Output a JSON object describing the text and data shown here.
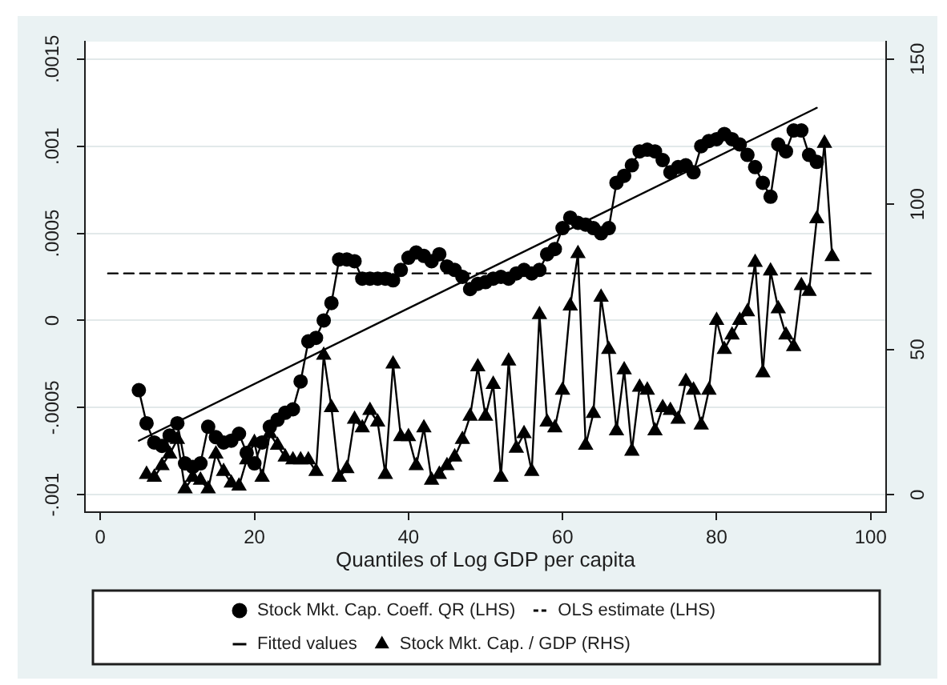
{
  "chart_data": {
    "type": "line",
    "xlabel": "Quantiles of Log GDP per capita",
    "xlim": [
      -2,
      102
    ],
    "xticks": [
      0,
      20,
      40,
      60,
      80,
      100
    ],
    "ylim": [
      -0.0011,
      0.0016
    ],
    "yticks": [
      {
        "value": -0.001,
        "label": "-.001"
      },
      {
        "value": -0.0005,
        "label": "-.0005"
      },
      0,
      {
        "value": 0.0005,
        "label": ".0005"
      },
      {
        "value": 0.001,
        "label": ".001"
      },
      {
        "value": 0.0015,
        "label": ".0015"
      }
    ],
    "y2lim": [
      -6,
      156
    ],
    "y2ticks": [
      0,
      50,
      100,
      150
    ],
    "grid": "y",
    "legend": "bottom",
    "series": [
      {
        "name": "Stock Mkt. Cap. Coeff. QR (LHS)",
        "color": "#000000",
        "marker": "circle",
        "line_style": "solid",
        "x": [
          5,
          6,
          7,
          8,
          9,
          10,
          11,
          12,
          13,
          14,
          15,
          16,
          17,
          18,
          19,
          20,
          21,
          22,
          23,
          24,
          25,
          26,
          27,
          28,
          29,
          30,
          31,
          32,
          33,
          34,
          35,
          36,
          37,
          38,
          39,
          40,
          41,
          42,
          43,
          44,
          45,
          46,
          47,
          48,
          49,
          50,
          51,
          52,
          53,
          54,
          55,
          56,
          57,
          58,
          59,
          60,
          61,
          62,
          63,
          64,
          65,
          66,
          67,
          68,
          69,
          70,
          71,
          72,
          73,
          74,
          75,
          76,
          77,
          78,
          79,
          80,
          81,
          82,
          83,
          84,
          85,
          86,
          87,
          88,
          89,
          90,
          91,
          92,
          93
        ],
        "values": [
          -0.0004,
          -0.00059,
          -0.0007,
          -0.00072,
          -0.00066,
          -0.00059,
          -0.00082,
          -0.00084,
          -0.00082,
          -0.00061,
          -0.00067,
          -0.0007,
          -0.00069,
          -0.00065,
          -0.00076,
          -0.00082,
          -0.0007,
          -0.00061,
          -0.00057,
          -0.00053,
          -0.00051,
          -0.00035,
          -0.00012,
          -0.0001,
          0,
          0.0001,
          0.00035,
          0.00035,
          0.00034,
          0.00024,
          0.00024,
          0.00024,
          0.00024,
          0.00023,
          0.00029,
          0.00036,
          0.00039,
          0.00037,
          0.00034,
          0.00038,
          0.00031,
          0.00029,
          0.00025,
          0.00018,
          0.00021,
          0.00022,
          0.00024,
          0.00025,
          0.00024,
          0.00027,
          0.00029,
          0.00027,
          0.00029,
          0.00038,
          0.00041,
          0.00053,
          0.00059,
          0.00056,
          0.00055,
          0.00053,
          0.0005,
          0.00053,
          0.00079,
          0.00083,
          0.00089,
          0.00097,
          0.00098,
          0.00097,
          0.00092,
          0.00085,
          0.00088,
          0.00089,
          0.00085,
          0.001,
          0.00103,
          0.00104,
          0.00107,
          0.00104,
          0.00101,
          0.00095,
          0.00088,
          0.00079,
          0.00071,
          0.00101,
          0.00097,
          0.00109,
          0.00109,
          0.00095,
          0.00091
        ]
      },
      {
        "name": "OLS estimate (LHS)",
        "color": "#000000",
        "marker": "none",
        "line_style": "dashed",
        "x": [
          1,
          100
        ],
        "values": [
          0.00027,
          0.00027
        ]
      },
      {
        "name": "Fitted values",
        "color": "#000000",
        "marker": "none",
        "line_style": "solid",
        "x": [
          5,
          93
        ],
        "values": [
          -0.00069,
          0.00122
        ]
      },
      {
        "name": "Stock Mkt. Cap. / GDP (RHS)",
        "color": "#000000",
        "marker": "triangle",
        "line_style": "solid",
        "axis": "y2",
        "x": [
          6,
          7,
          8,
          9,
          10,
          11,
          12,
          13,
          14,
          15,
          16,
          17,
          18,
          19,
          20,
          21,
          22,
          23,
          24,
          25,
          26,
          27,
          28,
          29,
          30,
          31,
          32,
          33,
          34,
          35,
          36,
          37,
          38,
          39,
          40,
          41,
          42,
          43,
          44,
          45,
          46,
          47,
          48,
          49,
          50,
          51,
          52,
          53,
          54,
          55,
          56,
          57,
          58,
          59,
          60,
          61,
          62,
          63,
          64,
          65,
          66,
          67,
          68,
          69,
          70,
          71,
          72,
          73,
          74,
          75,
          76,
          77,
          78,
          79,
          80,
          81,
          82,
          83,
          84,
          85,
          86,
          87,
          88,
          89,
          90,
          91,
          92,
          93,
          94,
          95
        ],
        "values": [
          7,
          6,
          10,
          14,
          19,
          2,
          6,
          5,
          2,
          14,
          8,
          4,
          3,
          12,
          18,
          6,
          21,
          17,
          13,
          12,
          12,
          12,
          8,
          48,
          30,
          6,
          9,
          26,
          23,
          29,
          25,
          7,
          45,
          20,
          20,
          10,
          23,
          5,
          7,
          10,
          13,
          19,
          27,
          44,
          27,
          38,
          6,
          46,
          16,
          21,
          8,
          62,
          25,
          23,
          36,
          65,
          83,
          17,
          28,
          68,
          50,
          22,
          43,
          15,
          37,
          36,
          22,
          30,
          29,
          26,
          39,
          36,
          24,
          36,
          60,
          50,
          55,
          60,
          63,
          80,
          42,
          77,
          64,
          55,
          51,
          72,
          70,
          95,
          121,
          82
        ]
      }
    ]
  }
}
